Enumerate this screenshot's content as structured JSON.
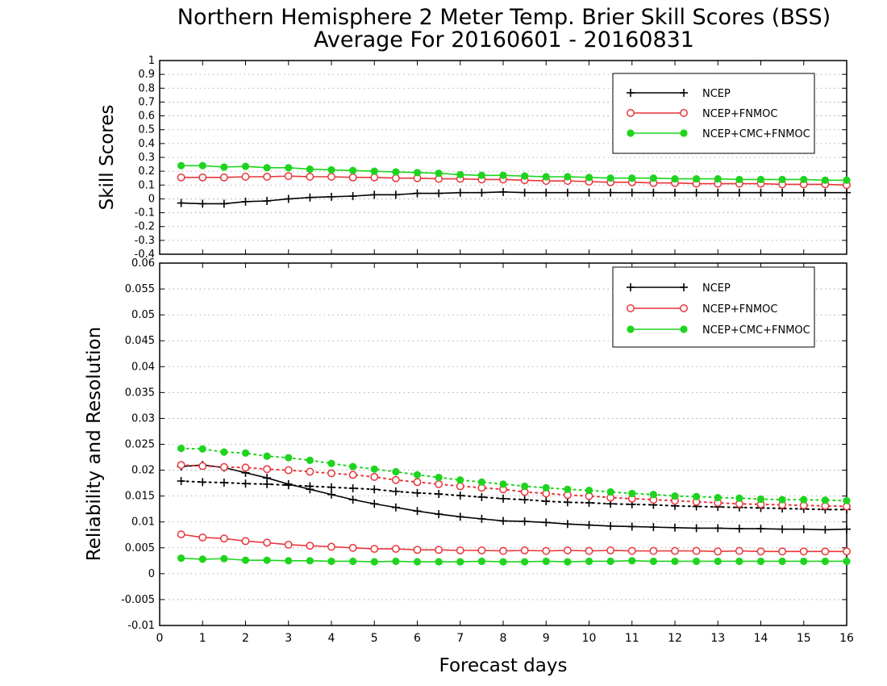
{
  "title": {
    "line1": "Northern Hemisphere 2 Meter Temp. Brier Skill Scores (BSS)",
    "line2": "Average For 20160601 - 20160831"
  },
  "xlabel": "Forecast days",
  "colors": {
    "ncep": "#000000",
    "fnmoc": "#e8353a",
    "cmc": "#1ed41e",
    "grid": "#9a9a9a"
  },
  "chart_data": [
    {
      "type": "line",
      "ylabel": "Skill Scores",
      "xlim": [
        0,
        16
      ],
      "ylim": [
        -0.4,
        1
      ],
      "x_ticks": [
        0,
        1,
        2,
        3,
        4,
        5,
        6,
        7,
        8,
        9,
        10,
        11,
        12,
        13,
        14,
        15,
        16
      ],
      "y_ticks": [
        -0.4,
        -0.3,
        -0.2,
        -0.1,
        0,
        0.1,
        0.2,
        0.3,
        0.4,
        0.5,
        0.6,
        0.7,
        0.8,
        0.9,
        1
      ],
      "y_tick_labels": [
        "-0.4",
        "-0.3",
        "-0.2",
        "-0.1",
        "0",
        "0.1",
        "0.2",
        "0.3",
        "0.4",
        "0.5",
        "0.6",
        "0.7",
        "0.8",
        "0.9",
        "1"
      ],
      "grid": true,
      "legend_position": "top-right",
      "x": [
        0.5,
        1,
        1.5,
        2,
        2.5,
        3,
        3.5,
        4,
        4.5,
        5,
        5.5,
        6,
        6.5,
        7,
        7.5,
        8,
        8.5,
        9,
        9.5,
        10,
        10.5,
        11,
        11.5,
        12,
        12.5,
        13,
        13.5,
        14,
        14.5,
        15,
        15.5,
        16
      ],
      "series": [
        {
          "name": "NCEP",
          "style": "ncep",
          "line": "solid",
          "values": [
            -0.03,
            -0.035,
            -0.035,
            -0.02,
            -0.015,
            0.0,
            0.01,
            0.015,
            0.02,
            0.03,
            0.03,
            0.04,
            0.04,
            0.045,
            0.045,
            0.05,
            0.045,
            0.045,
            0.045,
            0.045,
            0.045,
            0.045,
            0.045,
            0.045,
            0.045,
            0.045,
            0.045,
            0.045,
            0.045,
            0.045,
            0.045,
            0.045
          ]
        },
        {
          "name": "NCEP+FNMOC",
          "style": "fnmoc",
          "line": "solid",
          "values": [
            0.155,
            0.155,
            0.155,
            0.16,
            0.16,
            0.165,
            0.16,
            0.16,
            0.155,
            0.155,
            0.15,
            0.15,
            0.145,
            0.145,
            0.14,
            0.14,
            0.135,
            0.13,
            0.13,
            0.125,
            0.12,
            0.12,
            0.115,
            0.115,
            0.11,
            0.11,
            0.11,
            0.11,
            0.105,
            0.105,
            0.105,
            0.1
          ]
        },
        {
          "name": "NCEP+CMC+FNMOC",
          "style": "cmc",
          "line": "solid",
          "values": [
            0.24,
            0.24,
            0.23,
            0.235,
            0.225,
            0.225,
            0.215,
            0.21,
            0.205,
            0.2,
            0.195,
            0.19,
            0.185,
            0.175,
            0.17,
            0.17,
            0.165,
            0.16,
            0.16,
            0.155,
            0.15,
            0.15,
            0.15,
            0.145,
            0.145,
            0.145,
            0.14,
            0.14,
            0.14,
            0.14,
            0.135,
            0.135
          ]
        }
      ]
    },
    {
      "type": "line",
      "ylabel": "Reliability and Resolution",
      "xlim": [
        0,
        16
      ],
      "ylim": [
        -0.01,
        0.06
      ],
      "x_ticks": [
        0,
        1,
        2,
        3,
        4,
        5,
        6,
        7,
        8,
        9,
        10,
        11,
        12,
        13,
        14,
        15,
        16
      ],
      "y_ticks": [
        -0.01,
        -0.005,
        0,
        0.005,
        0.01,
        0.015,
        0.02,
        0.025,
        0.03,
        0.035,
        0.04,
        0.045,
        0.05,
        0.055,
        0.06
      ],
      "y_tick_labels": [
        "-0.01",
        "-0.005",
        "0",
        "0.005",
        "0.01",
        "0.015",
        "0.02",
        "0.025",
        "0.03",
        "0.035",
        "0.04",
        "0.045",
        "0.05",
        "0.055",
        "0.06"
      ],
      "grid": true,
      "legend_position": "top-right",
      "x": [
        0.5,
        1,
        1.5,
        2,
        2.5,
        3,
        3.5,
        4,
        4.5,
        5,
        5.5,
        6,
        6.5,
        7,
        7.5,
        8,
        8.5,
        9,
        9.5,
        10,
        10.5,
        11,
        11.5,
        12,
        12.5,
        13,
        13.5,
        14,
        14.5,
        15,
        15.5,
        16
      ],
      "series": [
        {
          "name": "NCEP",
          "style": "ncep",
          "line": "solid",
          "values": [
            0.0207,
            0.021,
            0.0205,
            0.0195,
            0.0185,
            0.0173,
            0.0163,
            0.0153,
            0.0143,
            0.0135,
            0.0128,
            0.0121,
            0.0115,
            0.011,
            0.0106,
            0.0102,
            0.0101,
            0.0099,
            0.0096,
            0.0094,
            0.0092,
            0.0091,
            0.009,
            0.0089,
            0.0088,
            0.0088,
            0.0087,
            0.0087,
            0.0086,
            0.0086,
            0.0085,
            0.0086
          ]
        },
        {
          "name": "",
          "style": "ncep",
          "line": "dotted",
          "values": [
            0.0179,
            0.0177,
            0.0176,
            0.0174,
            0.0173,
            0.0171,
            0.0169,
            0.0167,
            0.0165,
            0.0163,
            0.0159,
            0.0156,
            0.0154,
            0.0151,
            0.0148,
            0.0145,
            0.0143,
            0.014,
            0.0138,
            0.0137,
            0.0135,
            0.0134,
            0.0133,
            0.0131,
            0.013,
            0.0129,
            0.0128,
            0.0127,
            0.0126,
            0.0125,
            0.0124,
            0.0124
          ]
        },
        {
          "name": "NCEP+FNMOC",
          "style": "fnmoc",
          "line": "solid",
          "values": [
            0.0076,
            0.007,
            0.0068,
            0.0063,
            0.006,
            0.0056,
            0.0054,
            0.0052,
            0.005,
            0.0048,
            0.0048,
            0.0046,
            0.0046,
            0.0045,
            0.0045,
            0.0044,
            0.0045,
            0.0044,
            0.0045,
            0.0044,
            0.0045,
            0.0044,
            0.0044,
            0.0044,
            0.0044,
            0.0043,
            0.0044,
            0.0043,
            0.0043,
            0.0043,
            0.0043,
            0.0043
          ]
        },
        {
          "name": "",
          "style": "fnmoc",
          "line": "dotted",
          "values": [
            0.021,
            0.0208,
            0.0206,
            0.0205,
            0.0202,
            0.02,
            0.0197,
            0.0194,
            0.0191,
            0.0187,
            0.0181,
            0.0177,
            0.0173,
            0.0169,
            0.0166,
            0.0163,
            0.0158,
            0.0155,
            0.0152,
            0.015,
            0.0147,
            0.0145,
            0.0143,
            0.0141,
            0.0139,
            0.0137,
            0.0135,
            0.0134,
            0.0133,
            0.0132,
            0.0131,
            0.013
          ]
        },
        {
          "name": "NCEP+CMC+FNMOC",
          "style": "cmc",
          "line": "solid",
          "values": [
            0.003,
            0.0028,
            0.0029,
            0.0026,
            0.0026,
            0.0025,
            0.0025,
            0.0024,
            0.0024,
            0.0023,
            0.0024,
            0.0023,
            0.0023,
            0.0023,
            0.0024,
            0.0023,
            0.0023,
            0.0024,
            0.0023,
            0.0024,
            0.0024,
            0.0025,
            0.0024,
            0.0024,
            0.0024,
            0.0024,
            0.0024,
            0.0024,
            0.0024,
            0.0024,
            0.0024,
            0.0024
          ]
        },
        {
          "name": "",
          "style": "cmc",
          "line": "dotted",
          "values": [
            0.0242,
            0.0241,
            0.0235,
            0.0233,
            0.0227,
            0.0224,
            0.0219,
            0.0213,
            0.0207,
            0.0202,
            0.0197,
            0.0191,
            0.0186,
            0.0181,
            0.0177,
            0.0173,
            0.0169,
            0.0166,
            0.0163,
            0.0161,
            0.0158,
            0.0155,
            0.0153,
            0.015,
            0.0149,
            0.0147,
            0.0146,
            0.0144,
            0.0143,
            0.0143,
            0.0142,
            0.0141
          ]
        }
      ]
    }
  ]
}
